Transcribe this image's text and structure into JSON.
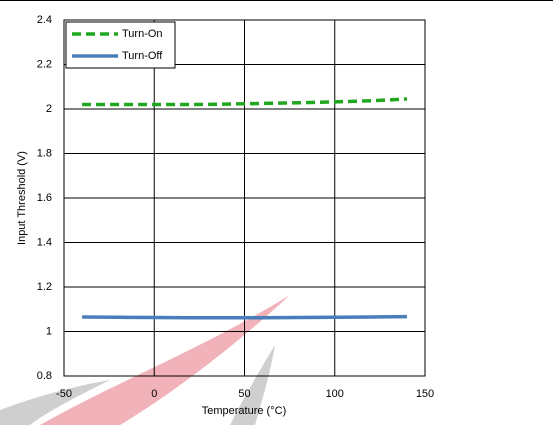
{
  "chart_data": {
    "type": "line",
    "x_label": "Temperature (°C)",
    "y_label": "Input Threshold (V)",
    "x": [
      -40,
      -20,
      0,
      20,
      40,
      60,
      80,
      100,
      120,
      140
    ],
    "series": [
      {
        "name": "Turn-On",
        "color": "#1fa81f",
        "style": "dashed",
        "values": [
          2.02,
          2.02,
          2.02,
          2.02,
          2.022,
          2.025,
          2.028,
          2.032,
          2.037,
          2.045
        ]
      },
      {
        "name": "Turn-Off",
        "color": "#4a7ebb",
        "style": "solid",
        "values": [
          1.065,
          1.064,
          1.063,
          1.062,
          1.062,
          1.062,
          1.063,
          1.064,
          1.065,
          1.067
        ]
      }
    ],
    "xlim": [
      -50,
      150
    ],
    "xticks": [
      -50,
      0,
      50,
      100,
      150
    ],
    "ylim": [
      0.8,
      2.4
    ],
    "yticks": [
      0.8,
      1,
      1.2,
      1.4,
      1.6,
      1.8,
      2,
      2.2,
      2.4
    ],
    "grid": true,
    "legend": "upper left"
  }
}
